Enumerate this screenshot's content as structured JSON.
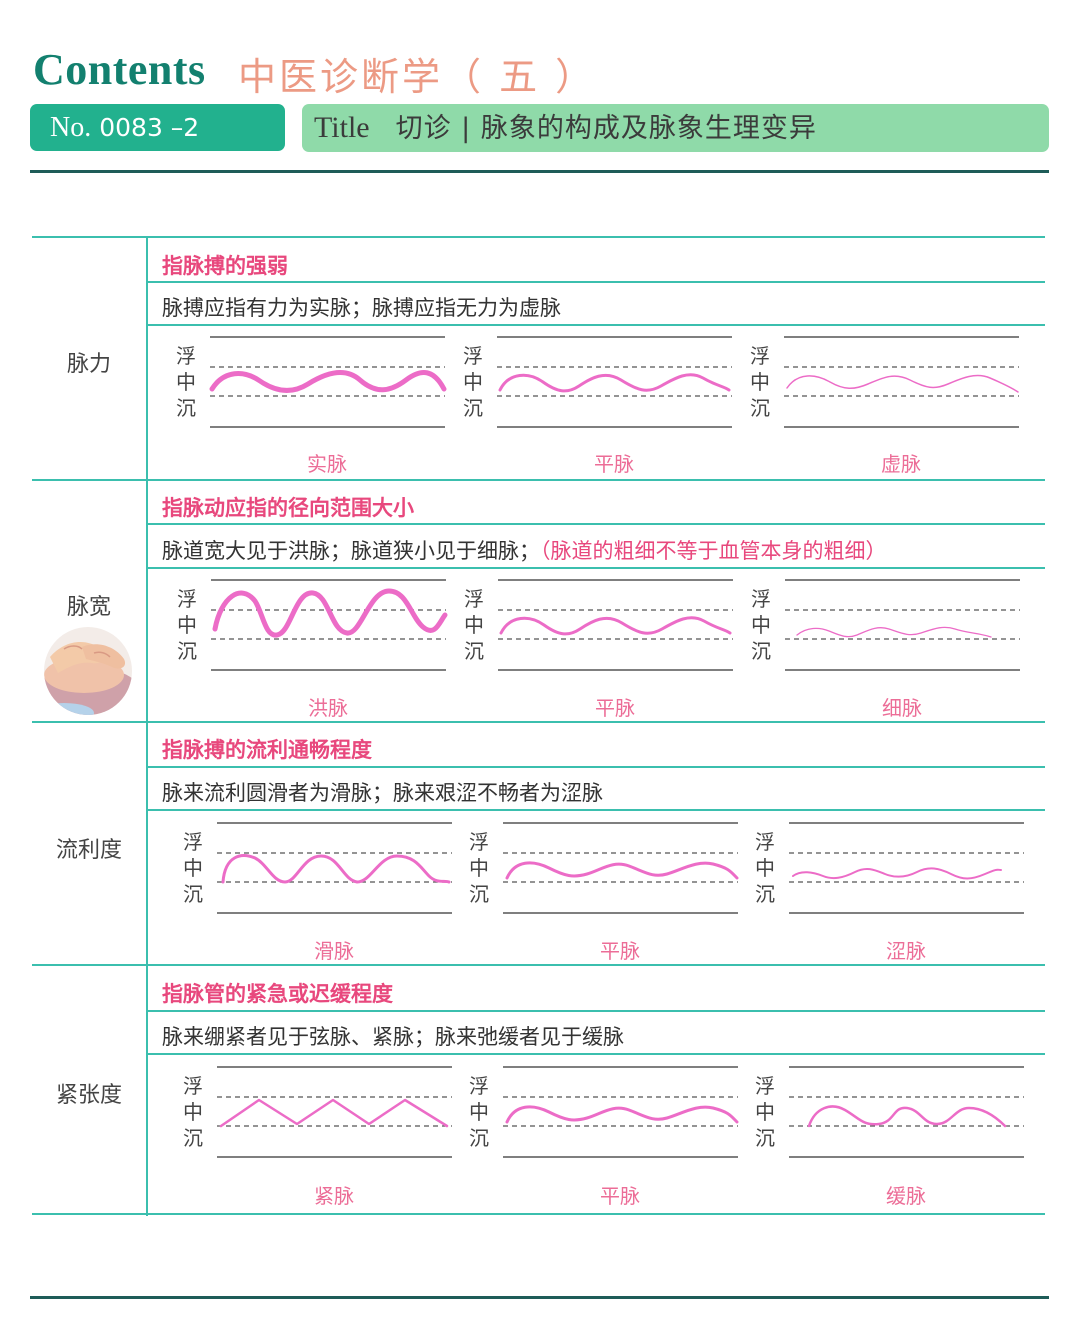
{
  "header": {
    "contents_label": "Contents",
    "subject": "中医诊断学（ 五 ）",
    "no_prefix": "No.",
    "no_value": "0083 –2",
    "title_prefix": "Title",
    "title_text": "切诊 | 脉象的构成及脉象生理变异"
  },
  "level_labels": [
    "浮",
    "中",
    "沉"
  ],
  "colors": {
    "accent_green": "#22b18e",
    "title_green": "#8fdaa9",
    "rule": "#3bbfae",
    "pink": "#e8487d",
    "wave": "#ec6cc7"
  },
  "rows": [
    {
      "label": "脉力",
      "heading": "指脉搏的强弱",
      "description": "脉搏应指有力为实脉；脉搏应指无力为虚脉",
      "note": "",
      "diagrams": [
        {
          "caption": "实脉",
          "wave": "strong-sine"
        },
        {
          "caption": "平脉",
          "wave": "normal-sine"
        },
        {
          "caption": "虚脉",
          "wave": "weak-sine"
        }
      ]
    },
    {
      "label": "脉宽",
      "heading": "指脉动应指的径向范围大小",
      "description": "脉道宽大见于洪脉；脉道狭小见于细脉；",
      "note": "（脉道的粗细不等于血管本身的粗细）",
      "photo": "pulse-taking-hand-photo",
      "diagrams": [
        {
          "caption": "洪脉",
          "wave": "large-amplitude-wave"
        },
        {
          "caption": "平脉",
          "wave": "normal-sine"
        },
        {
          "caption": "细脉",
          "wave": "thin-small-wave"
        }
      ]
    },
    {
      "label": "流利度",
      "heading": "指脉搏的流利通畅程度",
      "description": "脉来流利圆滑者为滑脉；脉来艰涩不畅者为涩脉",
      "note": "",
      "diagrams": [
        {
          "caption": "滑脉",
          "wave": "smooth-round-wave"
        },
        {
          "caption": "平脉",
          "wave": "normal-sine"
        },
        {
          "caption": "涩脉",
          "wave": "rough-flat-wave"
        }
      ]
    },
    {
      "label": "紧张度",
      "heading": "指脉管的紧急或迟缓程度",
      "description": "脉来绷紧者见于弦脉、紧脉；脉来弛缓者见于缓脉",
      "note": "",
      "diagrams": [
        {
          "caption": "紧脉",
          "wave": "zigzag-wave"
        },
        {
          "caption": "平脉",
          "wave": "normal-sine"
        },
        {
          "caption": "缓脉",
          "wave": "slow-wave"
        }
      ]
    }
  ]
}
